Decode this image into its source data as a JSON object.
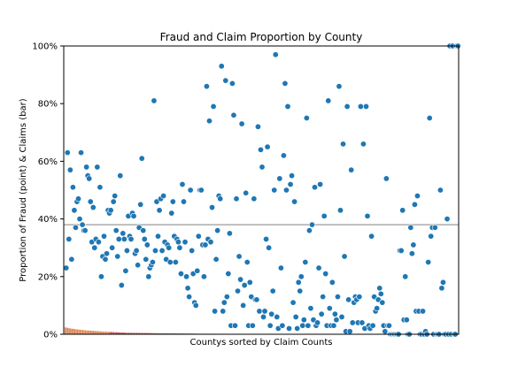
{
  "chart_data": {
    "type": "scatter",
    "title": "Fraud and Claim Proportion by County",
    "xlabel": "Countys sorted by Claim Counts",
    "ylabel": "Proportion of Fraud (point) & Claims (bar)",
    "ylim": [
      0,
      100
    ],
    "y_ticks": [
      "0%",
      "20%",
      "40%",
      "60%",
      "80%",
      "100%"
    ],
    "mean_line": 38,
    "grid": false,
    "point_color": "#1f77b4",
    "bar_palette": [
      "#dd8452",
      "#c44e52",
      "#937860",
      "#da8bc3",
      "#8c8c8c",
      "#ccb974",
      "#64b5cd",
      "#55a868",
      "#4c72b0"
    ],
    "series": [
      {
        "kind": "point",
        "values": [
          23,
          63,
          33,
          57,
          26,
          51,
          43,
          37,
          46,
          47,
          40,
          63,
          38,
          36,
          36,
          58,
          55,
          54,
          46,
          32,
          44,
          30,
          33,
          58,
          32,
          51,
          20,
          27,
          34,
          26,
          28,
          43,
          42,
          43,
          30,
          46,
          48,
          36,
          27,
          33,
          55,
          17,
          35,
          33,
          22,
          29,
          41,
          34,
          33,
          42,
          41,
          28,
          29,
          24,
          37,
          45,
          61,
          36,
          33,
          26,
          31,
          20,
          23,
          24,
          25,
          81,
          29,
          46,
          34,
          43,
          47,
          29,
          48,
          32,
          26,
          31,
          30,
          25,
          42,
          46,
          34,
          25,
          33,
          32,
          30,
          21,
          52,
          46,
          32,
          20,
          16,
          13,
          50,
          29,
          21,
          11,
          10,
          22,
          34,
          50,
          50,
          31,
          20,
          31,
          86,
          33,
          74,
          32,
          44,
          79,
          8,
          26,
          36,
          48,
          47,
          93,
          8,
          11,
          88,
          13,
          21,
          35,
          3,
          87,
          76,
          3,
          47,
          15,
          27,
          19,
          73,
          10,
          17,
          49,
          25,
          3,
          18,
          13,
          3,
          47,
          12,
          12,
          72,
          8,
          64,
          58,
          6,
          8,
          33,
          65,
          30,
          3,
          7,
          15,
          50,
          97,
          6,
          2,
          54,
          23,
          3,
          62,
          87,
          50,
          79,
          2,
          52,
          55,
          11,
          46,
          6,
          2,
          18,
          15,
          20,
          3,
          5,
          25,
          75,
          3,
          36,
          9,
          38,
          5,
          51,
          3,
          4,
          23,
          52,
          7,
          13,
          41,
          21,
          3,
          81,
          9,
          3,
          18,
          3,
          7,
          5,
          13,
          86,
          43,
          6,
          66,
          27,
          1,
          79,
          12,
          1,
          57,
          4,
          11,
          13,
          12,
          4,
          13,
          79,
          4,
          66,
          2,
          79,
          41,
          3,
          2,
          34,
          3,
          13,
          8,
          9,
          12,
          16,
          14,
          11,
          3,
          1,
          54,
          3,
          3,
          0,
          0,
          0,
          0,
          0,
          0,
          0,
          29,
          29,
          43,
          5,
          20,
          5,
          0,
          0,
          37,
          28,
          31,
          45,
          8,
          48,
          8,
          0,
          0,
          8,
          0,
          1,
          0,
          25,
          75,
          34,
          37,
          0,
          37,
          0,
          0,
          0,
          50,
          16,
          18,
          0,
          0,
          40,
          0,
          100,
          0,
          100,
          0,
          0,
          100,
          100
        ]
      }
    ],
    "bar_values_start": [
      2.4,
      2.3,
      2.2,
      2.1,
      2.0,
      1.9,
      1.9,
      1.8,
      1.7,
      1.7,
      1.6,
      1.6,
      1.5,
      1.5,
      1.4,
      1.4,
      1.3,
      1.3,
      1.3,
      1.2,
      1.2,
      1.2,
      1.1,
      1.1,
      1.1,
      1.0,
      1.0,
      1.0,
      0.9,
      0.9,
      0.9,
      0.9,
      0.8,
      0.8,
      0.8,
      0.8,
      0.7,
      0.7,
      0.7,
      0.7,
      0.6,
      0.6,
      0.6,
      0.6,
      0.6,
      0.5,
      0.5,
      0.5,
      0.5,
      0.5
    ]
  }
}
